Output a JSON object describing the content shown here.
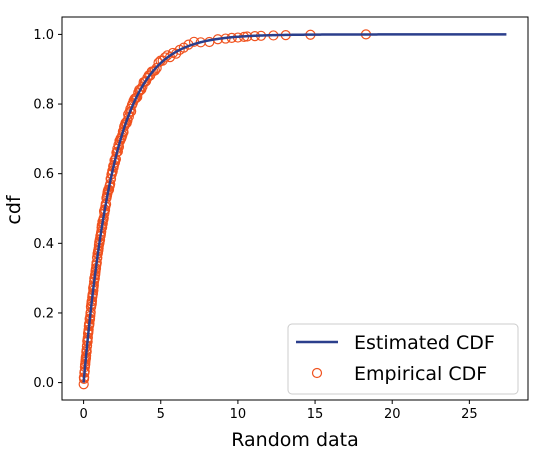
{
  "chart_data": {
    "type": "line",
    "xlabel": "Random data",
    "ylabel": "cdf",
    "xlim": [
      -1.4,
      28.8
    ],
    "ylim": [
      -0.05,
      1.05
    ],
    "xticks": [
      0,
      5,
      10,
      15,
      20,
      25
    ],
    "yticks": [
      0.0,
      0.2,
      0.4,
      0.6,
      0.8,
      1.0
    ],
    "xtick_labels": [
      "0",
      "5",
      "10",
      "15",
      "20",
      "25"
    ],
    "ytick_labels": [
      "0.0",
      "0.2",
      "0.4",
      "0.6",
      "0.8",
      "1.0"
    ],
    "grid": false,
    "legend_position": "lower-right",
    "series": [
      {
        "name": "Estimated CDF",
        "kind": "line",
        "color": "#2b3f8c",
        "distribution": "exponential",
        "scale": 2.0,
        "x_range": [
          0,
          27.4
        ]
      },
      {
        "name": "Empirical CDF",
        "kind": "scatter",
        "color": "#f0521e",
        "marker": "open-circle",
        "dense_x_range": [
          0,
          8.5
        ],
        "tail_points": [
          {
            "x": 8.7,
            "y": 0.986
          },
          {
            "x": 9.2,
            "y": 0.988
          },
          {
            "x": 9.6,
            "y": 0.99
          },
          {
            "x": 10.0,
            "y": 0.991
          },
          {
            "x": 10.4,
            "y": 0.993
          },
          {
            "x": 10.6,
            "y": 0.994
          },
          {
            "x": 11.1,
            "y": 0.995
          },
          {
            "x": 11.5,
            "y": 0.996
          },
          {
            "x": 12.3,
            "y": 0.997
          },
          {
            "x": 13.1,
            "y": 0.998
          },
          {
            "x": 14.7,
            "y": 0.999
          },
          {
            "x": 18.3,
            "y": 1.0
          }
        ]
      }
    ]
  }
}
